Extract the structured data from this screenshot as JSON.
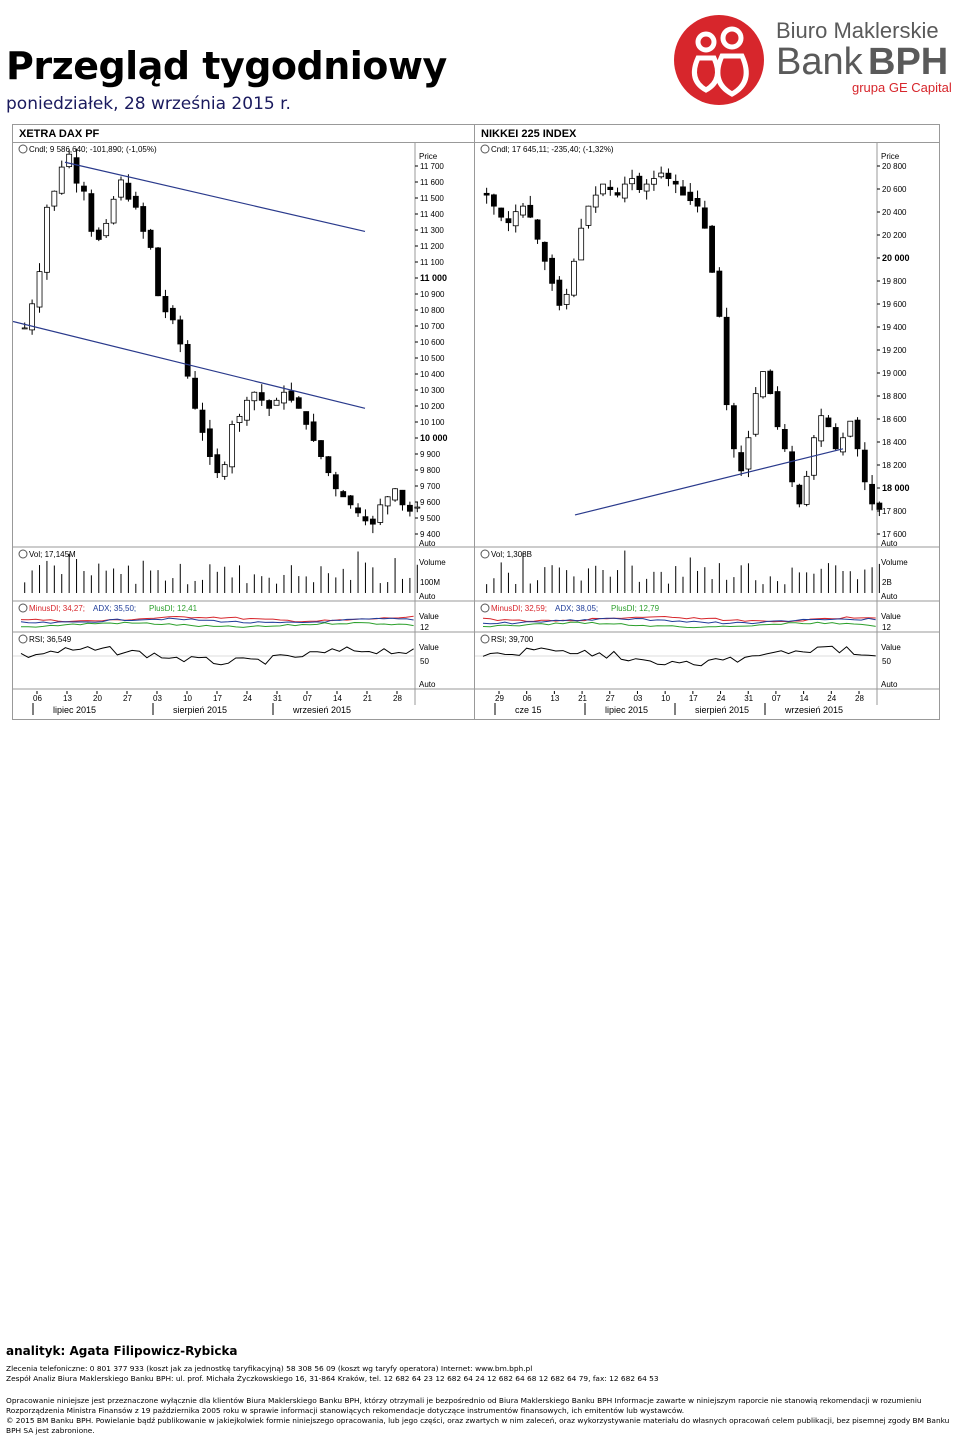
{
  "header": {
    "title": "Przegląd tygodniowy",
    "date": "poniedziałek, 28 września 2015 r."
  },
  "logo": {
    "line1": "Biuro Maklerskie",
    "line2a": "Bank",
    "line2b": "BPH",
    "line3": "grupa GE Capital",
    "colors": {
      "red": "#d7262c",
      "grey": "#5a5a5a"
    }
  },
  "colors": {
    "minus": "#d7262c",
    "plus": "#2ca02c",
    "adx": "#1f3c99",
    "trend": "#2a3a8c"
  },
  "charts": [
    {
      "panel_title": "XETRA DAX PF",
      "legend_price": "Cndl; 9 586,640; -101,890; (-1,05%)",
      "legend_vol": "Vol; 17,145M",
      "legend_dmi": {
        "minus": "MinusDI; 34,27;",
        "adx": "ADX; 35,50;",
        "plus": "PlusDI; 12,41"
      },
      "legend_rsi": "RSI; 36,549",
      "price_title": "Price",
      "price_ticks": [
        "11 700",
        "11 600",
        "11 500",
        "11 400",
        "11 300",
        "11 200",
        "11 100",
        "11 000",
        "10 900",
        "10 800",
        "10 700",
        "10 600",
        "10 500",
        "10 400",
        "10 300",
        "10 200",
        "10 100",
        "10 000",
        "9 900",
        "9 800",
        "9 700",
        "9 600",
        "9 500",
        "9 400"
      ],
      "price_bold": [
        "11 000",
        "10 000"
      ],
      "vol_title": "Volume",
      "vol_tick": "100M",
      "dmi_title": "Value",
      "dmi_tick": "12",
      "rsi_title": "Value",
      "rsi_tick": "50",
      "auto": "Auto",
      "days": [
        "06",
        "13",
        "20",
        "27",
        "03",
        "10",
        "17",
        "24",
        "31",
        "07",
        "14",
        "21",
        "28"
      ],
      "months": [
        "lipiec 2015",
        "sierpień 2015",
        "wrzesień 2015"
      ],
      "chart_data": {
        "type": "candlestick",
        "ylim": [
          9400,
          11800
        ],
        "y_scale": "linear",
        "n_bars": 60,
        "seed": 7,
        "path": [
          10700,
          10850,
          11050,
          11450,
          11550,
          11700,
          11780,
          11600,
          11550,
          11300,
          11250,
          11350,
          11500,
          11620,
          11500,
          11450,
          11300,
          11200,
          10900,
          10800,
          10750,
          10600,
          10400,
          10200,
          10050,
          9900,
          9800,
          9850,
          10100,
          10150,
          10250,
          10300,
          10250,
          10200,
          10250,
          10300,
          10250,
          10200,
          10100,
          10000,
          9900,
          9800,
          9700,
          9650,
          9600,
          9550,
          9500,
          9480,
          9600,
          9650,
          9700,
          9600,
          9560,
          9586
        ],
        "trendlines": [
          {
            "from": [
              0.13,
              11730
            ],
            "to": [
              0.88,
              11300
            ]
          },
          {
            "from": [
              0.0,
              10740
            ],
            "to": [
              0.88,
              10200
            ]
          }
        ],
        "axes_label_side": "right"
      }
    },
    {
      "panel_title": "NIKKEI 225 INDEX",
      "legend_price": "Cndl; 17 645,11; -235,40; (-1,32%)",
      "legend_vol": "Vol; 1,308B",
      "legend_dmi": {
        "minus": "MinusDI; 32,59;",
        "adx": "ADX; 38,05;",
        "plus": "PlusDI; 12,79"
      },
      "legend_rsi": "RSI; 39,700",
      "price_title": "Price",
      "price_ticks": [
        "20 800",
        "20 600",
        "20 400",
        "20 200",
        "20 000",
        "19 800",
        "19 600",
        "19 400",
        "19 200",
        "19 000",
        "18 800",
        "18 600",
        "18 400",
        "18 200",
        "18 000",
        "17 800",
        "17 600"
      ],
      "price_bold": [
        "20 000",
        "18 000"
      ],
      "vol_title": "Volume",
      "vol_tick": "2B",
      "dmi_title": "Value",
      "dmi_tick": "12",
      "rsi_title": "Value",
      "rsi_tick": "50",
      "auto": "Auto",
      "days": [
        "29",
        "06",
        "13",
        "21",
        "27",
        "03",
        "10",
        "17",
        "24",
        "31",
        "07",
        "14",
        "24",
        "28"
      ],
      "months": [
        "cze 15",
        "lipiec 2015",
        "sierpień 2015",
        "wrzesień 2015"
      ],
      "chart_data": {
        "type": "candlestick",
        "ylim": [
          17400,
          20900
        ],
        "y_scale": "linear",
        "n_bars": 60,
        "seed": 13,
        "path": [
          20500,
          20400,
          20300,
          20250,
          20350,
          20400,
          20300,
          20100,
          19900,
          19700,
          19500,
          19600,
          19900,
          20200,
          20400,
          20500,
          20600,
          20550,
          20500,
          20600,
          20650,
          20550,
          20600,
          20650,
          20700,
          20650,
          20600,
          20500,
          20450,
          20400,
          20200,
          19800,
          19400,
          18600,
          18200,
          18000,
          18300,
          18700,
          18900,
          18700,
          18400,
          18200,
          17900,
          17700,
          17950,
          18300,
          18500,
          18400,
          18200,
          18300,
          18450,
          18200,
          17900,
          17700,
          17650
        ],
        "trendlines": [
          {
            "from": [
              0.25,
              17600
            ],
            "to": [
              0.92,
              18200
            ]
          }
        ],
        "axes_label_side": "right"
      }
    }
  ],
  "footer": {
    "analyst": "analityk: Agata Filipowicz-Rybicka",
    "line1": "Zlecenia telefoniczne: 0  801  377  933 (koszt jak za jednostkę taryfikacyjną)   58 308 56 09 (koszt wg taryfy operatora)   Internet: www.bm.bph.pl",
    "line2": "Zespół Analiz Biura Maklerskiego Banku BPH: ul. prof. Michała Życzkowskiego 16, 31-864 Kraków,  tel. 12 682 64 23   12 682 64 24   12  682 64 68   12 682 64 79,  fax: 12  682 64 53",
    "disclaimer": "Opracowanie niniejsze jest przeznaczone wyłącznie dla klientów Biura Maklerskiego Banku BPH, którzy otrzymali je bezpośrednio od Biura Maklerskiego Banku BPH Informacje zawarte w niniejszym raporcie nie stanowią rekomendacji w rozumieniu Rozporządzenia Ministra Finansów z 19 października 2005 roku w sprawie informacji stanowiących rekomendacje dotyczące instrumentów finansowych, ich emitentów lub wystawców.",
    "copyright": "© 2015 BM Banku BPH. Powielanie bądź publikowanie w jakiejkolwiek formie niniejszego opracowania, lub jego części, oraz zwartych w nim zaleceń, oraz wykorzystywanie materiału do własnych opracowań celem publikacji, bez pisemnej zgody BM Banku BPH SA jest zabronione."
  }
}
